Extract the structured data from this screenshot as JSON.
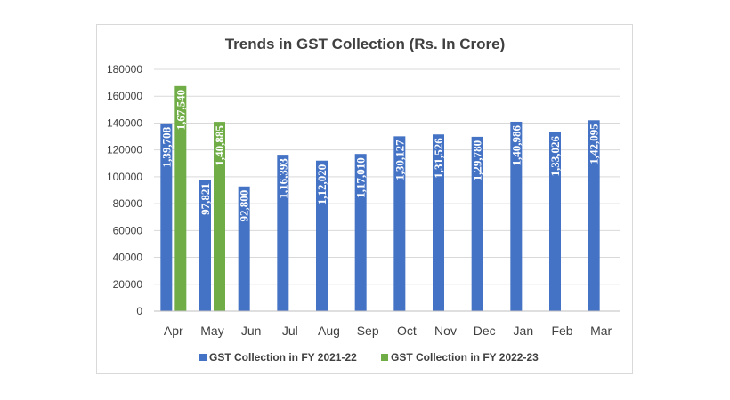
{
  "chart_data": {
    "type": "bar",
    "title": "Trends in GST Collection (Rs. In Crore)",
    "categories": [
      "Apr",
      "May",
      "Jun",
      "Jul",
      "Aug",
      "Sep",
      "Oct",
      "Nov",
      "Dec",
      "Jan",
      "Feb",
      "Mar"
    ],
    "series": [
      {
        "name": "GST Collection in FY 2021-22",
        "color": "#4472c4",
        "values": [
          139708,
          97821,
          92800,
          116393,
          112020,
          117010,
          130127,
          131526,
          129780,
          140986,
          133026,
          142095
        ],
        "labels": [
          "1,39,708",
          "97,821",
          "92,800",
          "1,16,393",
          "1,12,020",
          "1,17,010",
          "1,30,127",
          "1,31,526",
          "1,29,780",
          "1,40,986",
          "1,33,026",
          "1,42,095"
        ]
      },
      {
        "name": "GST Collection in FY 2022-23",
        "color": "#70ad47",
        "values": [
          167540,
          140885,
          null,
          null,
          null,
          null,
          null,
          null,
          null,
          null,
          null,
          null
        ],
        "labels": [
          "1,67,540",
          "1,40,885",
          null,
          null,
          null,
          null,
          null,
          null,
          null,
          null,
          null,
          null
        ]
      }
    ],
    "ylim": [
      0,
      180000
    ],
    "yticks": [
      0,
      20000,
      40000,
      60000,
      80000,
      100000,
      120000,
      140000,
      160000,
      180000
    ],
    "grid": true,
    "legend": "bottom"
  }
}
